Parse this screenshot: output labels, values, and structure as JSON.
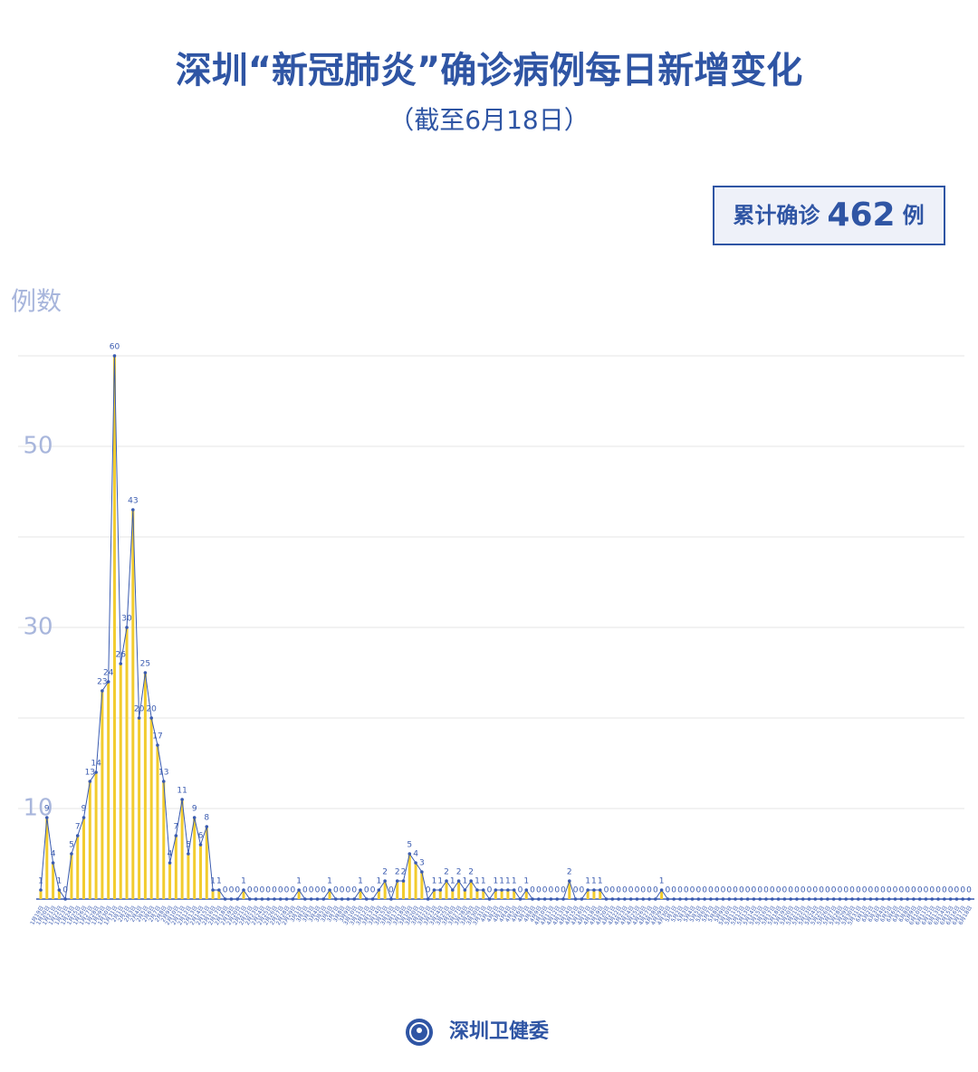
{
  "chart_data": {
    "type": "line-area",
    "title": "深圳“新冠肺炎”确诊病例每日新增变化",
    "subtitle": "（截至6月18日）",
    "total_label": "累计确诊",
    "total": 462,
    "total_unit": "例",
    "y_label": "例数",
    "source": "深圳卫健委",
    "line_color": "#3a5bb0",
    "fill_color": "#f2cc2e",
    "ylim": [
      0,
      60
    ],
    "yticks": [
      10,
      30,
      50
    ],
    "grid_lines": [
      10,
      20,
      30,
      40,
      50,
      60
    ],
    "grid": true,
    "categories": [
      "1月19日",
      "1月20日",
      "1月21日",
      "1月22日",
      "1月23日",
      "1月24日",
      "1月25日",
      "1月26日",
      "1月27日",
      "1月28日",
      "1月29日",
      "1月30日",
      "1月31日",
      "2月1日",
      "2月2日",
      "2月3日",
      "2月4日",
      "2月5日",
      "2月6日",
      "2月7日",
      "2月8日",
      "2月9日",
      "2月10日",
      "2月11日",
      "2月12日",
      "2月13日",
      "2月14日",
      "2月15日",
      "2月16日",
      "2月17日",
      "2月18日",
      "2月19日",
      "2月20日",
      "2月21日",
      "2月22日",
      "2月23日",
      "2月24日",
      "2月25日",
      "2月26日",
      "2月27日",
      "2月28日",
      "2月29日",
      "3月1日",
      "3月2日",
      "3月3日",
      "3月4日",
      "3月5日",
      "3月6日",
      "3月7日",
      "3月8日",
      "3月9日",
      "3月10日",
      "3月11日",
      "3月12日",
      "3月13日",
      "3月14日",
      "3月15日",
      "3月16日",
      "3月17日",
      "3月18日",
      "3月19日",
      "3月20日",
      "3月21日",
      "3月22日",
      "3月23日",
      "3月24日",
      "3月25日",
      "3月26日",
      "3月27日",
      "3月28日",
      "3月29日",
      "3月30日",
      "3月31日",
      "4月1日",
      "4月2日",
      "4月3日",
      "4月4日",
      "4月5日",
      "4月6日",
      "4月7日",
      "4月8日",
      "4月9日",
      "4月10日",
      "4月11日",
      "4月12日",
      "4月13日",
      "4月14日",
      "4月15日",
      "4月16日",
      "4月17日",
      "4月18日",
      "4月19日",
      "4月20日",
      "4月21日",
      "4月22日",
      "4月23日",
      "4月24日",
      "4月25日",
      "4月26日",
      "4月27日",
      "4月28日",
      "4月29日",
      "4月30日",
      "5月1日",
      "5月2日",
      "5月3日",
      "5月4日",
      "5月5日",
      "5月6日",
      "5月7日",
      "5月8日",
      "5月9日",
      "5月10日",
      "5月11日",
      "5月12日",
      "5月13日",
      "5月14日",
      "5月15日",
      "5月16日",
      "5月17日",
      "5月18日",
      "5月19日",
      "5月20日",
      "5月21日",
      "5月22日",
      "5月23日",
      "5月24日",
      "5月25日",
      "5月26日",
      "5月27日",
      "5月28日",
      "5月29日",
      "5月30日",
      "5月31日",
      "6月1日",
      "6月2日",
      "6月3日",
      "6月4日",
      "6月5日",
      "6月6日",
      "6月7日",
      "6月8日",
      "6月9日",
      "6月10日",
      "6月11日",
      "6月12日",
      "6月13日",
      "6月14日",
      "6月15日",
      "6月16日",
      "6月17日",
      "6月18日"
    ],
    "values": [
      1,
      9,
      4,
      1,
      0,
      5,
      7,
      9,
      13,
      14,
      23,
      24,
      60,
      26,
      30,
      43,
      20,
      25,
      20,
      17,
      13,
      4,
      7,
      11,
      5,
      9,
      6,
      8,
      1,
      1,
      0,
      0,
      0,
      1,
      0,
      0,
      0,
      0,
      0,
      0,
      0,
      0,
      1,
      0,
      0,
      0,
      0,
      1,
      0,
      0,
      0,
      0,
      1,
      0,
      0,
      1,
      2,
      0,
      2,
      2,
      5,
      4,
      3,
      0,
      1,
      1,
      2,
      1,
      2,
      1,
      2,
      1,
      1,
      0,
      1,
      1,
      1,
      1,
      0,
      1,
      0,
      0,
      0,
      0,
      0,
      0,
      2,
      0,
      0,
      1,
      1,
      1,
      0,
      0,
      0,
      0,
      0,
      0,
      0,
      0,
      0,
      1,
      0,
      0,
      0,
      0,
      0,
      0,
      0,
      0,
      0,
      0,
      0,
      0,
      0,
      0,
      0,
      0,
      0,
      0,
      0,
      0,
      0,
      0,
      0,
      0,
      0,
      0,
      0,
      0,
      0,
      0,
      0,
      0,
      0,
      0,
      0,
      0,
      0,
      0,
      0,
      0,
      0,
      0,
      0,
      0,
      0,
      0,
      0,
      0,
      0,
      0
    ]
  }
}
